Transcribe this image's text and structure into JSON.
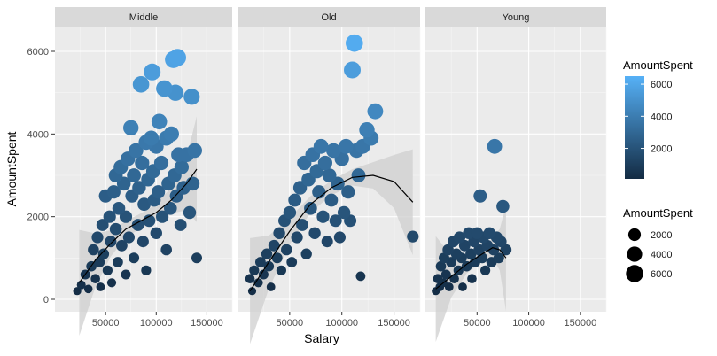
{
  "chart_data": {
    "type": "scatter",
    "xlabel": "Salary",
    "ylabel": "AmountSpent",
    "xlim": [
      0,
      175000
    ],
    "ylim": [
      -300,
      6600
    ],
    "x_ticks": [
      50000,
      100000,
      150000
    ],
    "y_ticks": [
      0,
      2000,
      4000,
      6000
    ],
    "grid": true,
    "smooth": "loess with confidence band",
    "colors": {
      "low": "#132B43",
      "high": "#56B1F7",
      "smooth_line": "#000000",
      "band": "#cfcfcf",
      "panel": "#ebebeb",
      "strip": "#d9d9d9"
    },
    "color_legend": {
      "title": "AmountSpent",
      "ticks": [
        2000,
        4000,
        6000
      ],
      "range": [
        100,
        6500
      ]
    },
    "size_legend": {
      "title": "AmountSpent",
      "values": [
        2000,
        4000,
        6000
      ]
    },
    "facets": [
      {
        "name": "Middle",
        "points": [
          [
            22000,
            200
          ],
          [
            26000,
            350
          ],
          [
            30000,
            600
          ],
          [
            33000,
            250
          ],
          [
            36000,
            800
          ],
          [
            38000,
            1200
          ],
          [
            40000,
            500
          ],
          [
            42000,
            1500
          ],
          [
            44000,
            900
          ],
          [
            45000,
            300
          ],
          [
            47000,
            1800
          ],
          [
            48000,
            1100
          ],
          [
            50000,
            2500
          ],
          [
            52000,
            700
          ],
          [
            54000,
            2000
          ],
          [
            55000,
            1400
          ],
          [
            56000,
            400
          ],
          [
            58000,
            2600
          ],
          [
            60000,
            1700
          ],
          [
            60000,
            3000
          ],
          [
            62000,
            900
          ],
          [
            63000,
            2200
          ],
          [
            65000,
            3200
          ],
          [
            66000,
            1300
          ],
          [
            68000,
            2800
          ],
          [
            70000,
            600
          ],
          [
            70000,
            2000
          ],
          [
            72000,
            3400
          ],
          [
            73000,
            1500
          ],
          [
            75000,
            4150
          ],
          [
            76000,
            2500
          ],
          [
            78000,
            1000
          ],
          [
            78000,
            3000
          ],
          [
            80000,
            3600
          ],
          [
            82000,
            1800
          ],
          [
            83000,
            2700
          ],
          [
            85000,
            5200
          ],
          [
            86000,
            3300
          ],
          [
            87000,
            1400
          ],
          [
            88000,
            2300
          ],
          [
            90000,
            3800
          ],
          [
            90000,
            700
          ],
          [
            92000,
            2900
          ],
          [
            93000,
            1900
          ],
          [
            95000,
            3900
          ],
          [
            96000,
            5500
          ],
          [
            97000,
            3100
          ],
          [
            98000,
            2400
          ],
          [
            100000,
            3700
          ],
          [
            100000,
            1600
          ],
          [
            102000,
            2600
          ],
          [
            103000,
            4300
          ],
          [
            105000,
            3300
          ],
          [
            106000,
            2000
          ],
          [
            108000,
            5100
          ],
          [
            110000,
            3900
          ],
          [
            110000,
            1200
          ],
          [
            112000,
            2800
          ],
          [
            114000,
            2200
          ],
          [
            115000,
            4000
          ],
          [
            117000,
            5800
          ],
          [
            118000,
            3000
          ],
          [
            119000,
            5000
          ],
          [
            120000,
            2500
          ],
          [
            121000,
            5850
          ],
          [
            122000,
            3500
          ],
          [
            124000,
            1800
          ],
          [
            125000,
            3200
          ],
          [
            127000,
            2700
          ],
          [
            130000,
            3500
          ],
          [
            133000,
            2100
          ],
          [
            135000,
            4900
          ],
          [
            136000,
            2800
          ],
          [
            138000,
            3600
          ],
          [
            140000,
            1000
          ]
        ],
        "smooth": [
          [
            24000,
            400
          ],
          [
            40000,
            950
          ],
          [
            55000,
            1350
          ],
          [
            70000,
            1700
          ],
          [
            85000,
            1900
          ],
          [
            100000,
            2100
          ],
          [
            115000,
            2400
          ],
          [
            130000,
            2800
          ],
          [
            140000,
            3150
          ]
        ]
      },
      {
        "name": "Old",
        "points": [
          [
            12000,
            500
          ],
          [
            14000,
            200
          ],
          [
            16000,
            700
          ],
          [
            20000,
            400
          ],
          [
            22000,
            900
          ],
          [
            25000,
            600
          ],
          [
            28000,
            1100
          ],
          [
            30000,
            800
          ],
          [
            32000,
            300
          ],
          [
            35000,
            1300
          ],
          [
            38000,
            1000
          ],
          [
            40000,
            1600
          ],
          [
            42000,
            700
          ],
          [
            45000,
            1900
          ],
          [
            47000,
            1200
          ],
          [
            50000,
            2100
          ],
          [
            52000,
            900
          ],
          [
            55000,
            2400
          ],
          [
            57000,
            1500
          ],
          [
            60000,
            2700
          ],
          [
            62000,
            1800
          ],
          [
            64000,
            3300
          ],
          [
            66000,
            1100
          ],
          [
            68000,
            2900
          ],
          [
            70000,
            2200
          ],
          [
            72000,
            3500
          ],
          [
            74000,
            1600
          ],
          [
            76000,
            3100
          ],
          [
            78000,
            2600
          ],
          [
            80000,
            3700
          ],
          [
            82000,
            2000
          ],
          [
            84000,
            3300
          ],
          [
            86000,
            1400
          ],
          [
            88000,
            3000
          ],
          [
            90000,
            2400
          ],
          [
            92000,
            3600
          ],
          [
            94000,
            1900
          ],
          [
            96000,
            2800
          ],
          [
            98000,
            1500
          ],
          [
            100000,
            3400
          ],
          [
            102000,
            2100
          ],
          [
            104000,
            3700
          ],
          [
            106000,
            2600
          ],
          [
            108000,
            1900
          ],
          [
            110000,
            5550
          ],
          [
            112000,
            6200
          ],
          [
            114000,
            3600
          ],
          [
            116000,
            3000
          ],
          [
            118000,
            560
          ],
          [
            120000,
            3700
          ],
          [
            124000,
            4100
          ],
          [
            128000,
            3900
          ],
          [
            132000,
            4550
          ],
          [
            168000,
            1520
          ]
        ],
        "smooth": [
          [
            12000,
            200
          ],
          [
            30000,
            900
          ],
          [
            50000,
            1650
          ],
          [
            70000,
            2300
          ],
          [
            90000,
            2700
          ],
          [
            110000,
            2950
          ],
          [
            130000,
            3000
          ],
          [
            150000,
            2850
          ],
          [
            168000,
            2350
          ]
        ]
      },
      {
        "name": "Young",
        "points": [
          [
            10000,
            200
          ],
          [
            12000,
            500
          ],
          [
            14000,
            300
          ],
          [
            15000,
            800
          ],
          [
            17000,
            400
          ],
          [
            18000,
            1000
          ],
          [
            20000,
            600
          ],
          [
            22000,
            1200
          ],
          [
            23000,
            300
          ],
          [
            25000,
            900
          ],
          [
            27000,
            1400
          ],
          [
            28000,
            500
          ],
          [
            30000,
            1100
          ],
          [
            32000,
            700
          ],
          [
            33000,
            1500
          ],
          [
            35000,
            1000
          ],
          [
            36000,
            300
          ],
          [
            38000,
            1300
          ],
          [
            40000,
            800
          ],
          [
            42000,
            1600
          ],
          [
            44000,
            1100
          ],
          [
            45000,
            500
          ],
          [
            47000,
            1400
          ],
          [
            48000,
            900
          ],
          [
            50000,
            1600
          ],
          [
            52000,
            1200
          ],
          [
            53000,
            2500
          ],
          [
            55000,
            1000
          ],
          [
            56000,
            1500
          ],
          [
            58000,
            700
          ],
          [
            60000,
            1300
          ],
          [
            62000,
            1600
          ],
          [
            64000,
            900
          ],
          [
            66000,
            1200
          ],
          [
            67000,
            3700
          ],
          [
            69000,
            1500
          ],
          [
            71000,
            1000
          ],
          [
            73000,
            1400
          ],
          [
            75000,
            2250
          ],
          [
            78000,
            1200
          ]
        ],
        "smooth": [
          [
            10000,
            250
          ],
          [
            25000,
            550
          ],
          [
            40000,
            850
          ],
          [
            55000,
            1100
          ],
          [
            65000,
            1250
          ],
          [
            72000,
            1200
          ],
          [
            78000,
            1000
          ]
        ]
      }
    ]
  }
}
